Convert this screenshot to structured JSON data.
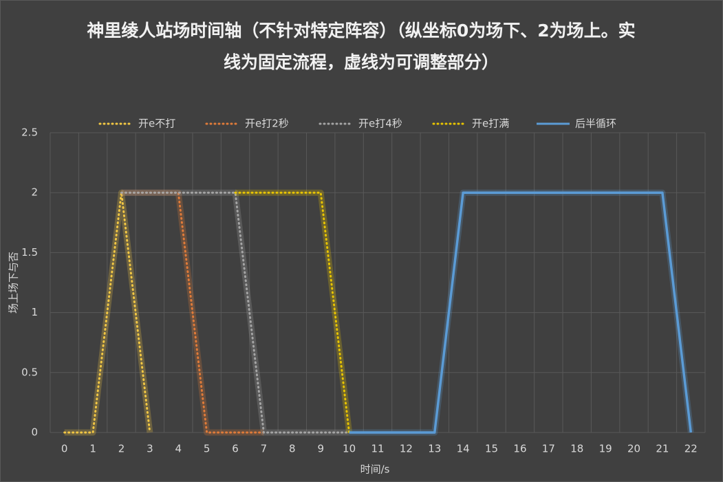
{
  "chart_data": {
    "type": "line",
    "title": "神里绫人站场时间轴（不针对特定阵容）（纵坐标0为场下、2为场上。实线为固定流程，虚线为可调整部分）",
    "xlabel": "时间/s",
    "ylabel": "场上场下与否",
    "categories": [
      "0",
      "1",
      "2",
      "3",
      "4",
      "5",
      "6",
      "7",
      "8",
      "9",
      "10",
      "11",
      "12",
      "13",
      "14",
      "15",
      "16",
      "17",
      "18",
      "19",
      "20",
      "21",
      "22"
    ],
    "ylim": [
      0,
      2.5
    ],
    "yticks": [
      0,
      0.5,
      1,
      1.5,
      2,
      2.5
    ],
    "grid": true,
    "legend": "top",
    "series": [
      {
        "name": "开e不打",
        "color": "#f2c744",
        "dashed": true,
        "values": [
          0,
          0,
          2,
          0,
          null,
          null,
          null,
          null,
          null,
          null,
          null,
          null,
          null,
          null,
          null,
          null,
          null,
          null,
          null,
          null,
          null,
          null,
          null
        ]
      },
      {
        "name": "开e打2秒",
        "color": "#e07b39",
        "dashed": true,
        "values": [
          null,
          null,
          2,
          2,
          2,
          0,
          0,
          0,
          null,
          null,
          null,
          null,
          null,
          null,
          null,
          null,
          null,
          null,
          null,
          null,
          null,
          null,
          null
        ]
      },
      {
        "name": "开e打4秒",
        "color": "#a5a5a5",
        "dashed": true,
        "values": [
          null,
          null,
          2,
          2,
          2,
          2,
          2,
          0,
          0,
          0,
          0,
          null,
          null,
          null,
          null,
          null,
          null,
          null,
          null,
          null,
          null,
          null,
          null
        ]
      },
      {
        "name": "开e打满",
        "color": "#e8c400",
        "dashed": true,
        "values": [
          null,
          null,
          null,
          null,
          null,
          null,
          2,
          2,
          2,
          2,
          0,
          null,
          null,
          null,
          null,
          null,
          null,
          null,
          null,
          null,
          null,
          null,
          null
        ]
      },
      {
        "name": "后半循环",
        "color": "#5b9bd5",
        "dashed": false,
        "values": [
          null,
          null,
          null,
          null,
          null,
          null,
          null,
          null,
          null,
          null,
          0,
          0,
          0,
          0,
          2,
          2,
          2,
          2,
          2,
          2,
          2,
          2,
          0
        ]
      }
    ]
  }
}
